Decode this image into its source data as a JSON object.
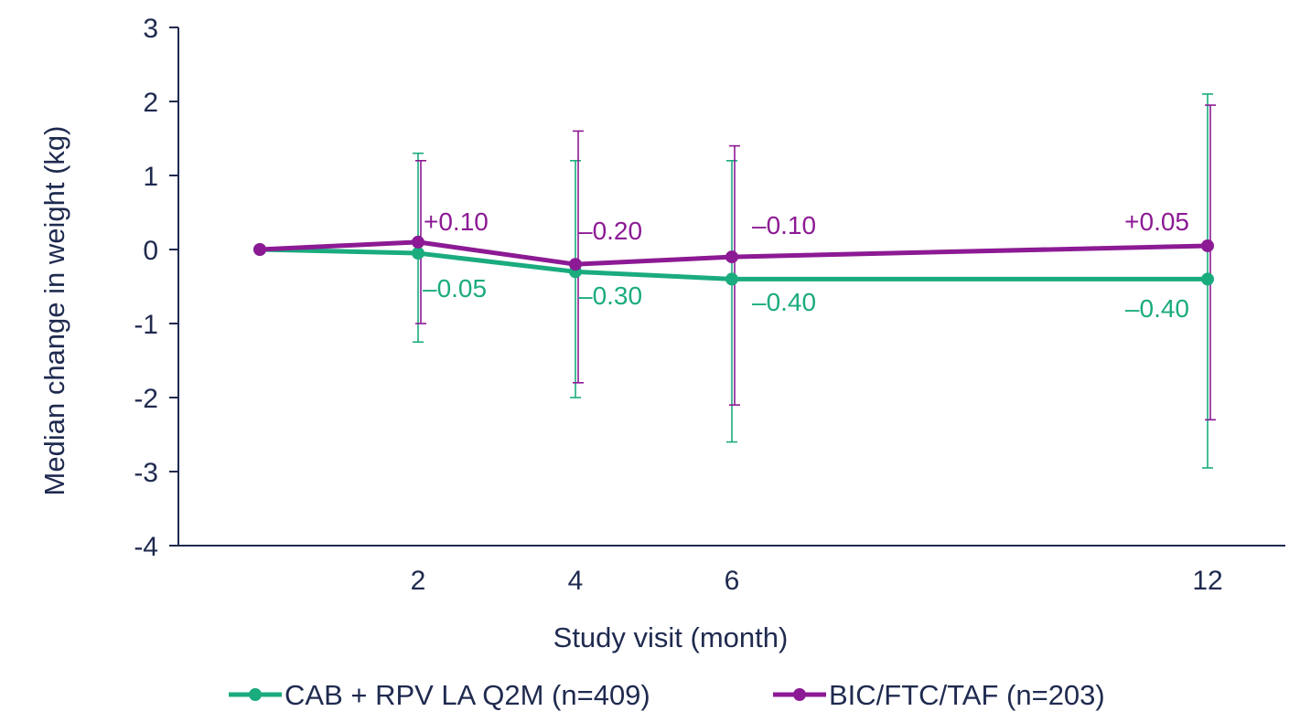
{
  "chart_data": {
    "type": "line",
    "title": "",
    "xlabel": "Study visit (month)",
    "ylabel": "Median change in weight (kg)",
    "ylim": [
      -4,
      3
    ],
    "yticks": [
      3,
      2,
      1,
      0,
      -1,
      -2,
      -3,
      -4
    ],
    "x": [
      0,
      2,
      4,
      6,
      12
    ],
    "xtick_labels": [
      "",
      "2",
      "4",
      "6",
      "12"
    ],
    "grid": false,
    "legend_position": "bottom",
    "series": [
      {
        "name": "CAB + RPV LA Q2M (n=409)",
        "color": "#1aab7e",
        "values": [
          0,
          -0.05,
          -0.3,
          -0.4,
          -0.4
        ],
        "lower": [
          null,
          -1.25,
          -2.0,
          -2.6,
          -2.95
        ],
        "upper": [
          null,
          1.3,
          1.2,
          1.2,
          2.1
        ],
        "labels": [
          "",
          "–0.05",
          "–0.30",
          "–0.40",
          "–0.40"
        ]
      },
      {
        "name": "BIC/FTC/TAF (n=203)",
        "color": "#8c1a94",
        "values": [
          0,
          0.1,
          -0.2,
          -0.1,
          0.05
        ],
        "lower": [
          null,
          -1.0,
          -1.8,
          -2.1,
          -2.3
        ],
        "upper": [
          null,
          1.2,
          1.6,
          1.4,
          1.95
        ],
        "labels": [
          "",
          "+0.10",
          "–0.20",
          "–0.10",
          "+0.05"
        ]
      }
    ]
  },
  "axis_color": "#1f2a4f"
}
